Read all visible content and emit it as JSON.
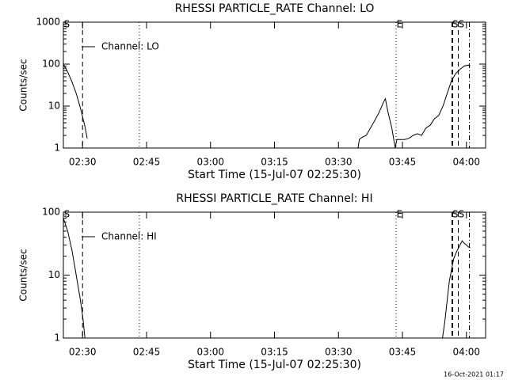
{
  "chart_data": [
    {
      "type": "line",
      "title": "RHESSI PARTICLE_RATE Channel: LO",
      "x_label": "Start Time (15-Jul-07 02:25:30)",
      "y_label": "Counts/sec",
      "log_y": true,
      "legend": "upper left",
      "xlim": [
        0,
        99
      ],
      "xticks": [
        {
          "value": 4.5,
          "label": "02:30"
        },
        {
          "value": 19.5,
          "label": "02:45"
        },
        {
          "value": 34.5,
          "label": "03:00"
        },
        {
          "value": 49.5,
          "label": "03:15"
        },
        {
          "value": 64.5,
          "label": "03:30"
        },
        {
          "value": 79.5,
          "label": "03:45"
        },
        {
          "value": 94.5,
          "label": "04:00"
        }
      ],
      "ylim": [
        1,
        1000
      ],
      "yticks": [
        1,
        10,
        100,
        1000
      ],
      "markers": [
        {
          "x": 4.5,
          "style": "dashed"
        },
        {
          "x": 17.8,
          "style": "dotted"
        },
        {
          "x": 78.0,
          "style": "dotted"
        },
        {
          "x": 91.2,
          "style": "dashed-thick"
        },
        {
          "x": 92.6,
          "style": "dashed"
        },
        {
          "x": 95.2,
          "style": "dashdot"
        }
      ],
      "annotations": [
        {
          "text": "S",
          "x": 0.8
        },
        {
          "text": "E",
          "x": 78.8
        },
        {
          "text": "SS",
          "x": 92.6
        }
      ],
      "series": [
        {
          "name": "Channel: LO",
          "color": "#000000",
          "x": [
            0,
            1,
            2,
            3,
            4,
            5,
            5.6,
            6,
            69.1,
            69.4,
            70,
            71,
            72,
            73,
            74,
            75,
            75.5,
            76,
            77,
            77.8,
            78.2,
            79,
            80,
            81,
            82,
            83,
            84,
            85,
            86,
            87,
            88,
            89,
            90,
            91,
            92,
            93,
            94,
            95,
            95.4
          ],
          "values": [
            100,
            65,
            38,
            20,
            9,
            3.5,
            1.7,
            null,
            1,
            1.6,
            1.8,
            2,
            3,
            4.5,
            7,
            12,
            15,
            8,
            3,
            1,
            1.6,
            1.6,
            1.6,
            1.7,
            2,
            2.2,
            2,
            3,
            3.5,
            5,
            6,
            10,
            20,
            40,
            60,
            75,
            90,
            95,
            90
          ]
        }
      ]
    },
    {
      "type": "line",
      "title": "RHESSI PARTICLE_RATE Channel: HI",
      "x_label": "Start Time (15-Jul-07 02:25:30)",
      "y_label": "Counts/sec",
      "log_y": true,
      "legend": "upper left",
      "xlim": [
        0,
        99
      ],
      "xticks": [
        {
          "value": 4.5,
          "label": "02:30"
        },
        {
          "value": 19.5,
          "label": "02:45"
        },
        {
          "value": 34.5,
          "label": "03:00"
        },
        {
          "value": 49.5,
          "label": "03:15"
        },
        {
          "value": 64.5,
          "label": "03:30"
        },
        {
          "value": 79.5,
          "label": "03:45"
        },
        {
          "value": 94.5,
          "label": "04:00"
        }
      ],
      "ylim": [
        1,
        100
      ],
      "yticks": [
        1,
        10,
        100
      ],
      "markers": [
        {
          "x": 4.5,
          "style": "dashed"
        },
        {
          "x": 17.8,
          "style": "dotted"
        },
        {
          "x": 78.0,
          "style": "dotted"
        },
        {
          "x": 91.2,
          "style": "dashed-thick"
        },
        {
          "x": 92.6,
          "style": "dashed"
        },
        {
          "x": 95.2,
          "style": "dashdot"
        }
      ],
      "annotations": [
        {
          "text": "S",
          "x": 0.8
        },
        {
          "text": "E",
          "x": 78.8
        },
        {
          "text": "SS",
          "x": 92.6
        }
      ],
      "series": [
        {
          "name": "Channel: HI",
          "color": "#000000",
          "x": [
            0,
            1,
            2,
            3,
            4,
            4.6,
            5.05,
            6,
            88.9,
            89.5,
            90,
            90.5,
            91,
            91.5,
            92,
            92.5,
            93,
            93.5,
            94,
            94.5,
            95,
            95.4
          ],
          "values": [
            80,
            50,
            25,
            10,
            4,
            2,
            1,
            null,
            1,
            2,
            4,
            8,
            12,
            18,
            22,
            26,
            30,
            35,
            32,
            30,
            28,
            27
          ]
        }
      ]
    }
  ],
  "footer": "16-Oct-2021 01:17"
}
